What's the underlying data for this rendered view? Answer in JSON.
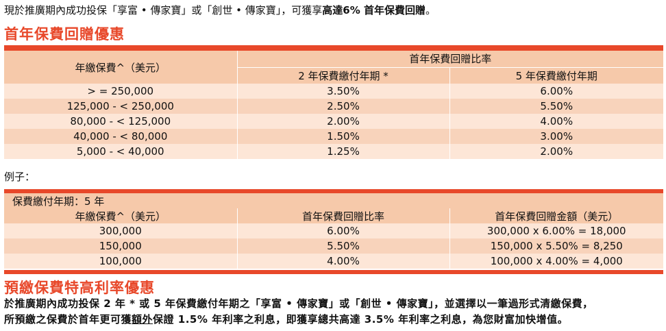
{
  "intro": {
    "prefix": "現於推廣期內成功投保「享富 • 傳家寶」或「創世 • 傳家寶」，可獲享",
    "highlight": "高達6% 首年保費回贈",
    "suffix": "。"
  },
  "section1_title": "首年保費回贈優惠",
  "table1": {
    "col1_header": "年繳保費^（美元）",
    "group_header": "首年保費回贈比率",
    "col2_header": "2 年保費繳付年期 *",
    "col3_header": "5 年保費繳付年期",
    "rows": [
      {
        "premium": "> = 250,000",
        "two_year": "3.50%",
        "five_year": "6.00%"
      },
      {
        "premium": "125,000 - < 250,000",
        "two_year": "2.50%",
        "five_year": "5.50%"
      },
      {
        "premium": "80,000 - < 125,000",
        "two_year": "2.00%",
        "five_year": "4.00%"
      },
      {
        "premium": "40,000 - < 80,000",
        "two_year": "1.50%",
        "five_year": "3.00%"
      },
      {
        "premium": "5,000 - < 40,000",
        "two_year": "1.25%",
        "five_year": "2.00%"
      }
    ]
  },
  "example_label": "例子：",
  "table2": {
    "term_label": "保費繳付年期：5 年",
    "col1_header": "年繳保費^（美元）",
    "col2_header": "首年保費回贈比率",
    "col3_header": "首年保費回贈金額（美元）",
    "rows": [
      {
        "premium": "300,000",
        "rate": "6.00%",
        "amount": "300,000 x 6.00% = 18,000"
      },
      {
        "premium": "150,000",
        "rate": "5.50%",
        "amount": "150,000 x 5.50% = 8,250"
      },
      {
        "premium": "100,000",
        "rate": "4.00%",
        "amount": "100,000 x 4.00% = 4,000"
      }
    ]
  },
  "section2_title": "預繳保費特高利率優惠",
  "note": {
    "line1": "於推廣期內成功投保 2 年 * 或 5 年保費繳付年期之「享富 • 傳家寶」或「創世 • 傳家寶」，並選擇以一筆過形式清繳保費，",
    "line2_a": "所預繳之保費於首年更可獲",
    "line2_u": "額外",
    "line2_b": "保證 1.5% 年利率之利息，即獲享總共高達 3.5% 年利率之利息，為您財富加快增值。"
  },
  "colors": {
    "accent": "#e8482a",
    "header_bg": "#f6c9aa",
    "row_light": "#fde6d7",
    "row_dark": "#f8d3bb"
  }
}
